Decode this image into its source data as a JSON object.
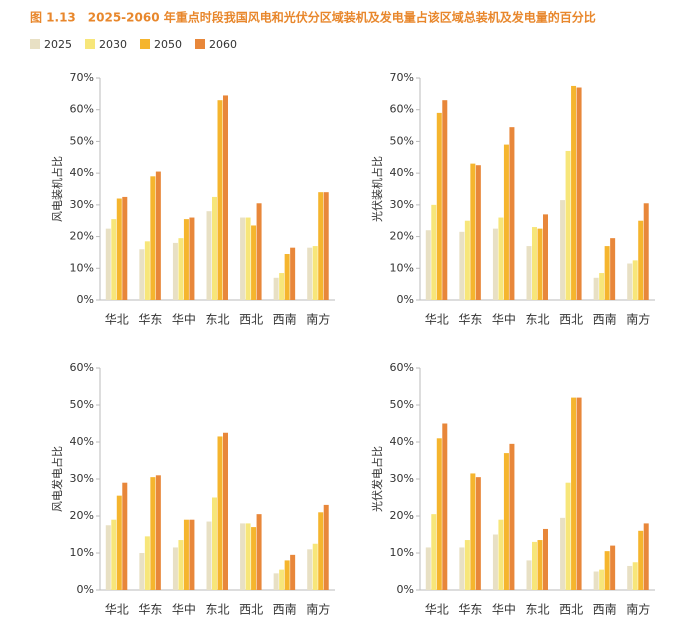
{
  "title": "图 1.13　2025-2060 年重点时段我国风电和光伏分区域装机及发电量占该区域总装机及发电量的百分比",
  "chart_data": [
    {
      "type": "bar",
      "ylabel": "风电装机占比",
      "categories": [
        "华北",
        "华东",
        "华中",
        "东北",
        "西北",
        "西南",
        "南方"
      ],
      "series": [
        {
          "name": "2025",
          "color": "#e8e0c4",
          "values": [
            22.5,
            16,
            18,
            28,
            26,
            7,
            16.5
          ]
        },
        {
          "name": "2030",
          "color": "#f7e67a",
          "values": [
            25.5,
            18.5,
            19.5,
            32.5,
            26,
            8.5,
            17
          ]
        },
        {
          "name": "2050",
          "color": "#f5b52e",
          "values": [
            32,
            39,
            25.5,
            63,
            23.5,
            14.5,
            34
          ]
        },
        {
          "name": "2060",
          "color": "#e8873a",
          "values": [
            32.5,
            40.5,
            26,
            64.5,
            30.5,
            16.5,
            34
          ]
        }
      ],
      "ylim": [
        0,
        70
      ],
      "yticks": [
        {
          "value": 0,
          "label": "0%"
        },
        {
          "value": 10,
          "label": "10%"
        },
        {
          "value": 20,
          "label": "20%"
        },
        {
          "value": 30,
          "label": "30%"
        },
        {
          "value": 40,
          "label": "40%"
        },
        {
          "value": 50,
          "label": "50%"
        },
        {
          "value": 60,
          "label": "60%"
        },
        {
          "value": 70,
          "label": "70%"
        }
      ]
    },
    {
      "type": "bar",
      "ylabel": "光伏装机占比",
      "categories": [
        "华北",
        "华东",
        "华中",
        "东北",
        "西北",
        "西南",
        "南方"
      ],
      "series": [
        {
          "name": "2025",
          "color": "#e8e0c4",
          "values": [
            22,
            21.5,
            22.5,
            17,
            31.5,
            7,
            11.5
          ]
        },
        {
          "name": "2030",
          "color": "#f7e67a",
          "values": [
            30,
            25,
            26,
            23,
            47,
            8.5,
            12.5
          ]
        },
        {
          "name": "2050",
          "color": "#f5b52e",
          "values": [
            59,
            43,
            49,
            22.5,
            67.5,
            17,
            25
          ]
        },
        {
          "name": "2060",
          "color": "#e8873a",
          "values": [
            63,
            42.5,
            54.5,
            27,
            67,
            19.5,
            30.5
          ]
        }
      ],
      "ylim": [
        0,
        70
      ],
      "yticks": [
        {
          "value": 0,
          "label": "0%"
        },
        {
          "value": 10,
          "label": "10%"
        },
        {
          "value": 20,
          "label": "20%"
        },
        {
          "value": 30,
          "label": "30%"
        },
        {
          "value": 40,
          "label": "40%"
        },
        {
          "value": 50,
          "label": "50%"
        },
        {
          "value": 60,
          "label": "60%"
        },
        {
          "value": 70,
          "label": "70%"
        }
      ]
    },
    {
      "type": "bar",
      "ylabel": "风电发电占比",
      "categories": [
        "华北",
        "华东",
        "华中",
        "东北",
        "西北",
        "西南",
        "南方"
      ],
      "series": [
        {
          "name": "2025",
          "color": "#e8e0c4",
          "values": [
            17.5,
            10,
            11.5,
            18.5,
            18,
            4.5,
            11
          ]
        },
        {
          "name": "2030",
          "color": "#f7e67a",
          "values": [
            19,
            14.5,
            13.5,
            25,
            18,
            5.5,
            12.5
          ]
        },
        {
          "name": "2050",
          "color": "#f5b52e",
          "values": [
            25.5,
            30.5,
            19,
            41.5,
            17,
            8,
            21
          ]
        },
        {
          "name": "2060",
          "color": "#e8873a",
          "values": [
            29,
            31,
            19,
            42.5,
            20.5,
            9.5,
            23
          ]
        }
      ],
      "ylim": [
        0,
        60
      ],
      "yticks": [
        {
          "value": 0,
          "label": "0%"
        },
        {
          "value": 10,
          "label": "10%"
        },
        {
          "value": 20,
          "label": "20%"
        },
        {
          "value": 30,
          "label": "30%"
        },
        {
          "value": 40,
          "label": "40%"
        },
        {
          "value": 50,
          "label": "50%"
        },
        {
          "value": 60,
          "label": "60%"
        }
      ]
    },
    {
      "type": "bar",
      "ylabel": "光伏发电占比",
      "categories": [
        "华北",
        "华东",
        "华中",
        "东北",
        "西北",
        "西南",
        "南方"
      ],
      "series": [
        {
          "name": "2025",
          "color": "#e8e0c4",
          "values": [
            11.5,
            11.5,
            15,
            8,
            19.5,
            5,
            6.5
          ]
        },
        {
          "name": "2030",
          "color": "#f7e67a",
          "values": [
            20.5,
            13.5,
            19,
            13,
            29,
            5.5,
            7.5
          ]
        },
        {
          "name": "2050",
          "color": "#f5b52e",
          "values": [
            41,
            31.5,
            37,
            13.5,
            52,
            10.5,
            16
          ]
        },
        {
          "name": "2060",
          "color": "#e8873a",
          "values": [
            45,
            30.5,
            39.5,
            16.5,
            52,
            12,
            18
          ]
        }
      ],
      "ylim": [
        0,
        60
      ],
      "yticks": [
        {
          "value": 0,
          "label": "0%"
        },
        {
          "value": 10,
          "label": "10%"
        },
        {
          "value": 20,
          "label": "20%"
        },
        {
          "value": 30,
          "label": "30%"
        },
        {
          "value": 40,
          "label": "40%"
        },
        {
          "value": 50,
          "label": "50%"
        },
        {
          "value": 60,
          "label": "60%"
        }
      ]
    }
  ]
}
